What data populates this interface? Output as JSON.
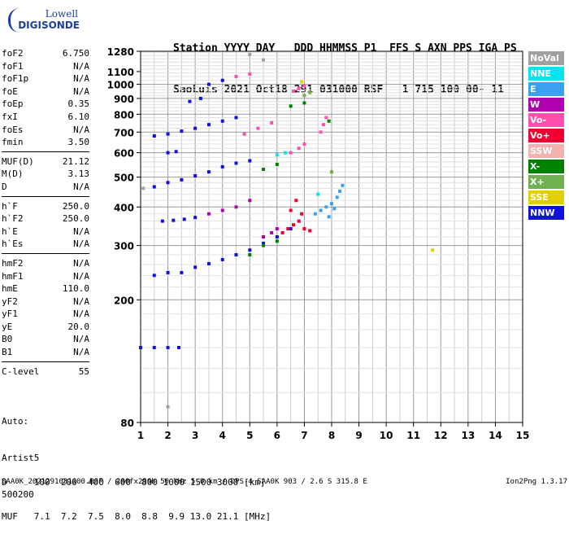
{
  "logo": {
    "line1": "Lowell",
    "line2": "DIGISONDE"
  },
  "header": {
    "line1": "Station YYYY DAY   DDD HHMMSS P1  FFS S AXN PPS IGA PS",
    "line2": "SaoLuis 2021 Oct18 291 031000 RSF   1 715 100 00- 11"
  },
  "params": {
    "group1": [
      {
        "label": "foF2",
        "value": "6.750"
      },
      {
        "label": "foF1",
        "value": "N/A"
      },
      {
        "label": "foF1p",
        "value": "N/A"
      },
      {
        "label": "foE",
        "value": "N/A"
      },
      {
        "label": "foEp",
        "value": "0.35"
      },
      {
        "label": "fxI",
        "value": "6.10"
      },
      {
        "label": "foEs",
        "value": "N/A"
      },
      {
        "label": "fmin",
        "value": "3.50"
      }
    ],
    "group2": [
      {
        "label": "MUF(D)",
        "value": "21.12"
      },
      {
        "label": "M(D)",
        "value": "3.13"
      },
      {
        "label": "D",
        "value": "N/A"
      }
    ],
    "group3": [
      {
        "label": "h`F",
        "value": "250.0"
      },
      {
        "label": "h`F2",
        "value": "250.0"
      },
      {
        "label": "h`E",
        "value": "N/A"
      },
      {
        "label": "h`Es",
        "value": "N/A"
      }
    ],
    "group4": [
      {
        "label": "hmF2",
        "value": "N/A"
      },
      {
        "label": "hmF1",
        "value": "N/A"
      },
      {
        "label": "hmE",
        "value": "110.0"
      },
      {
        "label": "yF2",
        "value": "N/A"
      },
      {
        "label": "yF1",
        "value": "N/A"
      },
      {
        "label": "yE",
        "value": "20.0"
      },
      {
        "label": "B0",
        "value": "N/A"
      },
      {
        "label": "B1",
        "value": "N/A"
      }
    ],
    "group5": [
      {
        "label": "C-level",
        "value": "55"
      }
    ]
  },
  "auto": {
    "line1": "Auto:",
    "line2": "Artist5",
    "line3": "500200"
  },
  "legend": [
    {
      "label": "NoVal",
      "color": "#a0a0a0"
    },
    {
      "label": "NNE",
      "color": "#00e6f0"
    },
    {
      "label": "E",
      "color": "#3aa0f0"
    },
    {
      "label": "W",
      "color": "#b000b0"
    },
    {
      "label": "Vo-",
      "color": "#ff50b0"
    },
    {
      "label": "Vo+",
      "color": "#f00030"
    },
    {
      "label": "SSW",
      "color": "#f5b0b0"
    },
    {
      "label": "X-",
      "color": "#008000"
    },
    {
      "label": "X+",
      "color": "#70b050"
    },
    {
      "label": "SSE",
      "color": "#e0d000"
    },
    {
      "label": "NNW",
      "color": "#1010e0"
    }
  ],
  "dtable": {
    "line1": "D     100  200  400  600  800 1000 1500 3000 [km]",
    "line2": "MUF   7.1  7.2  7.5  8.0  8.8  9.9 13.0 21.1 [MHz]"
  },
  "footer": {
    "left": "SAA0K_2021291031000.RSF / 280fx256h 50 kHz 5.0 km / DPS-4 SAA0K 903 / 2.6 S 315.8 E",
    "right": "Ion2Png 1.3.17"
  },
  "chart_data": {
    "type": "scatter",
    "xlabel": "",
    "ylabel": "",
    "xlim": [
      1,
      15
    ],
    "ylim": [
      80,
      1280
    ],
    "x_ticks": [
      1,
      2,
      3,
      4,
      5,
      6,
      7,
      8,
      9,
      10,
      11,
      12,
      13,
      14,
      15
    ],
    "y_ticks": [
      80,
      200,
      300,
      400,
      500,
      600,
      700,
      800,
      900,
      1000,
      1100,
      1280
    ],
    "y_scale": "log",
    "grid": true,
    "series": [
      {
        "name": "NNW",
        "color": "#1010e0",
        "points": [
          [
            1.0,
            140
          ],
          [
            1.5,
            140
          ],
          [
            2.0,
            140
          ],
          [
            2.4,
            140
          ],
          [
            1.5,
            240
          ],
          [
            2.0,
            245
          ],
          [
            2.5,
            245
          ],
          [
            3.0,
            255
          ],
          [
            3.5,
            262
          ],
          [
            4.0,
            270
          ],
          [
            4.5,
            280
          ],
          [
            5.0,
            290
          ],
          [
            5.5,
            305
          ],
          [
            6.0,
            320
          ],
          [
            6.5,
            340
          ],
          [
            1.5,
            465
          ],
          [
            2.0,
            480
          ],
          [
            2.5,
            490
          ],
          [
            3.0,
            505
          ],
          [
            3.5,
            520
          ],
          [
            4.0,
            540
          ],
          [
            4.5,
            555
          ],
          [
            5.0,
            565
          ],
          [
            1.8,
            360
          ],
          [
            2.2,
            362
          ],
          [
            2.6,
            365
          ],
          [
            3.0,
            370
          ],
          [
            1.5,
            680
          ],
          [
            2.0,
            690
          ],
          [
            2.5,
            705
          ],
          [
            3.0,
            720
          ],
          [
            3.5,
            740
          ],
          [
            4.0,
            760
          ],
          [
            4.5,
            780
          ],
          [
            2.0,
            600
          ],
          [
            2.3,
            605
          ],
          [
            2.8,
            880
          ],
          [
            3.2,
            900
          ],
          [
            3.5,
            1000
          ],
          [
            4.0,
            1030
          ]
        ]
      },
      {
        "name": "E",
        "color": "#3aa0f0",
        "points": [
          [
            7.4,
            380
          ],
          [
            7.6,
            390
          ],
          [
            7.8,
            400
          ],
          [
            8.0,
            410
          ],
          [
            8.2,
            430
          ],
          [
            8.3,
            450
          ],
          [
            8.4,
            470
          ],
          [
            8.1,
            395
          ],
          [
            7.9,
            372
          ]
        ]
      },
      {
        "name": "Vo+",
        "color": "#f00030",
        "points": [
          [
            6.2,
            330
          ],
          [
            6.4,
            340
          ],
          [
            6.6,
            350
          ],
          [
            6.8,
            360
          ],
          [
            7.0,
            340
          ],
          [
            7.2,
            335
          ],
          [
            6.5,
            390
          ],
          [
            6.7,
            420
          ],
          [
            6.9,
            380
          ]
        ]
      },
      {
        "name": "Vo-",
        "color": "#ff50b0",
        "points": [
          [
            6.6,
            950
          ],
          [
            6.8,
            970
          ],
          [
            7.0,
            990
          ],
          [
            7.6,
            700
          ],
          [
            7.7,
            740
          ],
          [
            7.8,
            780
          ],
          [
            6.5,
            600
          ],
          [
            6.8,
            620
          ],
          [
            7.0,
            640
          ],
          [
            4.8,
            690
          ],
          [
            5.3,
            720
          ],
          [
            5.8,
            750
          ],
          [
            4.5,
            1060
          ],
          [
            5.0,
            1080
          ]
        ]
      },
      {
        "name": "W",
        "color": "#b000b0",
        "points": [
          [
            5.5,
            320
          ],
          [
            5.8,
            330
          ],
          [
            6.0,
            340
          ],
          [
            3.5,
            380
          ],
          [
            4.0,
            390
          ],
          [
            4.5,
            400
          ],
          [
            5.0,
            420
          ]
        ]
      },
      {
        "name": "X-",
        "color": "#008000",
        "points": [
          [
            5.0,
            280
          ],
          [
            5.5,
            300
          ],
          [
            6.0,
            310
          ],
          [
            6.5,
            850
          ],
          [
            7.0,
            870
          ],
          [
            7.9,
            760
          ],
          [
            5.5,
            530
          ],
          [
            6.0,
            550
          ]
        ]
      },
      {
        "name": "SSE",
        "color": "#e0d000",
        "points": [
          [
            11.7,
            290
          ],
          [
            6.9,
            1020
          ]
        ]
      },
      {
        "name": "NNE",
        "color": "#00e6f0",
        "points": [
          [
            6.0,
            590
          ],
          [
            6.3,
            600
          ],
          [
            7.5,
            440
          ]
        ]
      },
      {
        "name": "X+",
        "color": "#70b050",
        "points": [
          [
            7.0,
            920
          ],
          [
            7.2,
            940
          ],
          [
            8.0,
            520
          ]
        ]
      },
      {
        "name": "NoVal",
        "color": "#a0a0a0",
        "points": [
          [
            5.0,
            1250
          ],
          [
            5.5,
            1200
          ],
          [
            2.0,
            90
          ],
          [
            1.1,
            460
          ]
        ]
      }
    ]
  }
}
